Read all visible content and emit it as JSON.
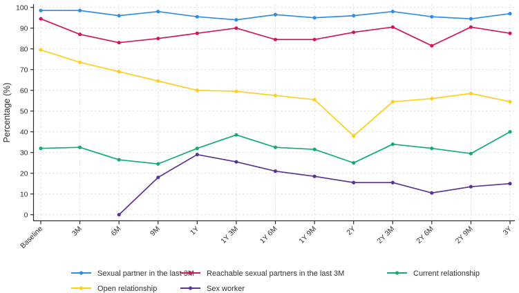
{
  "chart_data": {
    "type": "line",
    "title": "",
    "xlabel": "",
    "ylabel": "Percentage (%)",
    "ylim": [
      0,
      100
    ],
    "yticks": [
      0,
      10,
      20,
      30,
      40,
      50,
      60,
      70,
      80,
      90,
      100
    ],
    "grid": true,
    "grid_style": "dashed",
    "xtick_rotation": 45,
    "legend_position": "bottom",
    "categories": [
      "Baseline",
      "3M",
      "6M",
      "9M",
      "1Y",
      "1Y 3M",
      "1Y 6M",
      "1Y 9M",
      "2Y",
      "2Y 3M",
      "2Y 6M",
      "2Y 9M",
      "3Y"
    ],
    "series": [
      {
        "name": "Sexual partner in the last 3M",
        "slug": "sexual-partner-in-the-last-3m",
        "color": "#2E8BE6",
        "values": [
          98.5,
          98.5,
          96,
          98,
          95.5,
          94,
          96.5,
          95,
          96,
          98,
          95.5,
          94.5,
          97
        ]
      },
      {
        "name": "Reachable sexual partners in the last 3M",
        "slug": "reachable-sexual-partners-in-the-last-3m",
        "color": "#D2155C",
        "values": [
          94.5,
          87,
          83,
          85,
          87.5,
          90,
          84.5,
          84.5,
          88,
          90.5,
          81.5,
          90.5,
          87.5
        ]
      },
      {
        "name": "Current relationship",
        "slug": "current-relationship",
        "color": "#12AB78",
        "values": [
          32,
          32.5,
          26.5,
          24.5,
          32,
          38.5,
          32.5,
          31.5,
          25,
          34,
          32,
          29.5,
          40
        ]
      },
      {
        "name": "Open relationship",
        "slug": "open-relationship",
        "color": "#FFCE1D",
        "values": [
          79.5,
          73.5,
          69,
          64.5,
          60,
          59.5,
          57.5,
          55.5,
          38,
          54.5,
          56,
          58.5,
          54.5
        ]
      },
      {
        "name": "Sex worker",
        "slug": "sex-worker",
        "color": "#5C3292",
        "values": [
          null,
          null,
          0,
          18,
          29,
          25.5,
          21,
          18.5,
          15.5,
          15.5,
          10.5,
          13.5,
          15
        ]
      }
    ],
    "colors": {
      "axis": "#2b2b2b",
      "grid": "#e4e4e4",
      "tick_text": "#303030",
      "background": "#ffffff"
    }
  }
}
